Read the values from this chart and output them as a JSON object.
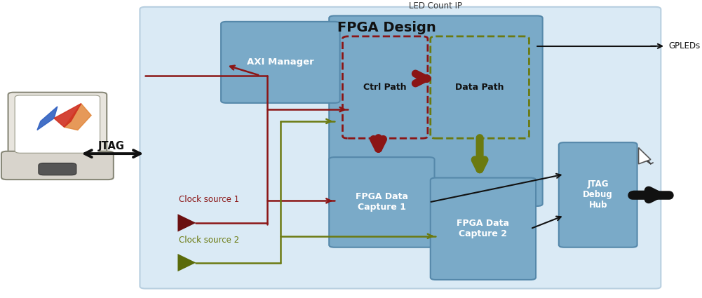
{
  "title": "FPGA Design",
  "bg_outer": "#ffffff",
  "bg_fpga": "#daeaf5",
  "box_blue": "#7aaac8",
  "box_blue_edge": "#5588aa",
  "red": "#8b1515",
  "olive": "#6b7a10",
  "dark": "#111111",
  "gray_line": "#555555",
  "fpga_bg": [
    0.215,
    0.04,
    0.97,
    0.98
  ],
  "axi": [
    0.335,
    0.67,
    0.495,
    0.93
  ],
  "led_bg": [
    0.495,
    0.32,
    0.795,
    0.95
  ],
  "ctrl": [
    0.515,
    0.55,
    0.625,
    0.88
  ],
  "data": [
    0.645,
    0.55,
    0.775,
    0.88
  ],
  "fc1": [
    0.495,
    0.18,
    0.635,
    0.47
  ],
  "fc2": [
    0.645,
    0.07,
    0.785,
    0.4
  ],
  "jtag_hub": [
    0.835,
    0.18,
    0.935,
    0.52
  ],
  "axi_label": "AXI Manager",
  "led_label": "LED Count IP",
  "ctrl_label": "Ctrl Path",
  "data_label": "Data Path",
  "fc1_label": "FPGA Data\nCapture 1",
  "fc2_label": "FPGA Data\nCapture 2",
  "hub_label": "JTAG\nDebug\nHub",
  "gpleds_label": "GPLEDs",
  "jtag_label": "JTAG",
  "clk1_label": "Clock source 1",
  "clk2_label": "Clock source 2"
}
